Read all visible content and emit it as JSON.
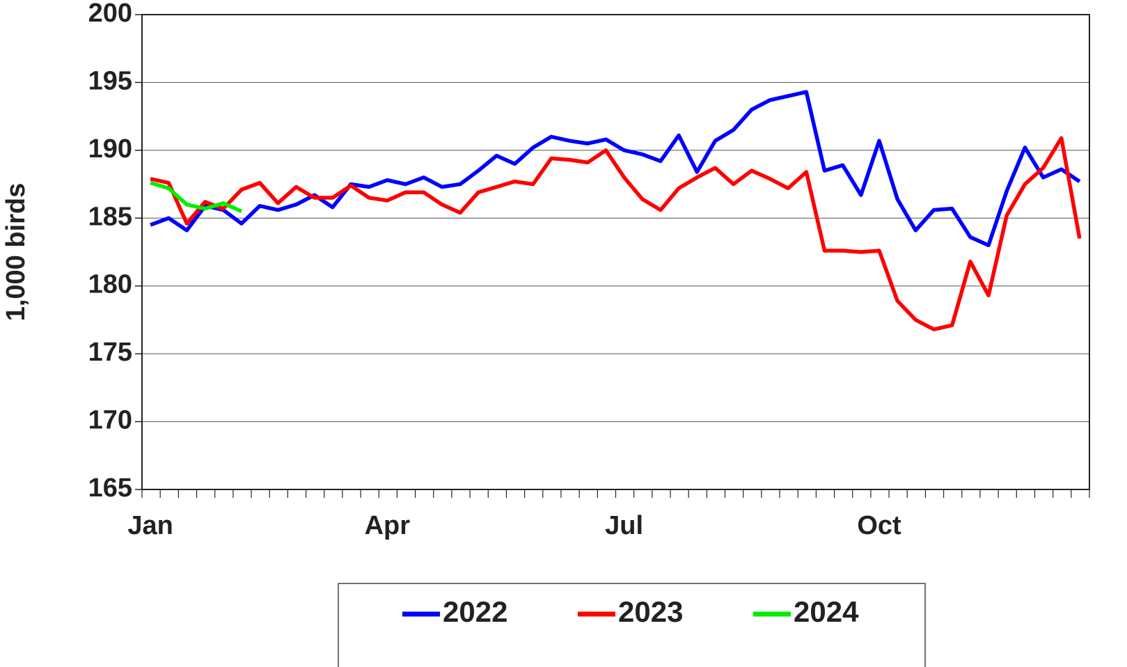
{
  "chart_data": {
    "type": "line",
    "ylabel": "1,000 birds",
    "categories": [
      "Jan",
      null,
      null,
      null,
      null,
      null,
      null,
      null,
      null,
      null,
      null,
      null,
      null,
      "Apr",
      null,
      null,
      null,
      null,
      null,
      null,
      null,
      null,
      null,
      null,
      null,
      null,
      "Jul",
      null,
      null,
      null,
      null,
      null,
      null,
      null,
      null,
      null,
      null,
      null,
      null,
      null,
      "Oct",
      null,
      null,
      null,
      null,
      null,
      null,
      null,
      null,
      null,
      null,
      null
    ],
    "ylim": [
      165,
      200
    ],
    "yticks": [
      165,
      170,
      175,
      180,
      185,
      190,
      195,
      200
    ],
    "grid": true,
    "series": [
      {
        "name": "2022",
        "color": "#0000ff",
        "values": [
          184.5,
          185.0,
          184.1,
          185.9,
          185.6,
          184.6,
          185.9,
          185.6,
          186.0,
          186.7,
          185.8,
          187.5,
          187.3,
          187.8,
          187.5,
          188.0,
          187.3,
          187.5,
          188.5,
          189.6,
          189.0,
          190.2,
          191.0,
          190.7,
          190.5,
          190.8,
          190.0,
          189.7,
          189.2,
          191.1,
          188.4,
          190.7,
          191.5,
          193.0,
          193.7,
          194.0,
          194.3,
          188.5,
          188.9,
          186.7,
          190.7,
          186.4,
          184.1,
          185.6,
          185.7,
          183.6,
          183.0,
          187.0,
          190.2,
          188.0,
          188.6,
          187.7
        ]
      },
      {
        "name": "2023",
        "color": "#ff0000",
        "values": [
          187.9,
          187.6,
          184.6,
          186.2,
          185.7,
          187.1,
          187.6,
          186.1,
          187.3,
          186.5,
          186.5,
          187.4,
          186.5,
          186.3,
          186.9,
          186.9,
          186.0,
          185.4,
          186.9,
          187.3,
          187.7,
          187.5,
          189.4,
          189.3,
          189.1,
          190.0,
          188.0,
          186.4,
          185.6,
          187.2,
          188.0,
          188.7,
          187.5,
          188.5,
          187.9,
          187.2,
          188.4,
          182.6,
          182.6,
          182.5,
          182.6,
          178.9,
          177.5,
          176.8,
          177.1,
          181.8,
          179.3,
          185.2,
          187.5,
          188.7,
          190.9,
          183.5
        ]
      },
      {
        "name": "2024",
        "color": "#00ee00",
        "values": [
          187.6,
          187.2,
          186.0,
          185.7,
          186.1,
          185.5,
          null,
          null,
          null,
          null,
          null,
          null,
          null,
          null,
          null,
          null,
          null,
          null,
          null,
          null,
          null,
          null,
          null,
          null,
          null,
          null,
          null,
          null,
          null,
          null,
          null,
          null,
          null,
          null,
          null,
          null,
          null,
          null,
          null,
          null,
          null,
          null,
          null,
          null,
          null,
          null,
          null,
          null,
          null,
          null,
          null,
          null
        ]
      }
    ]
  }
}
